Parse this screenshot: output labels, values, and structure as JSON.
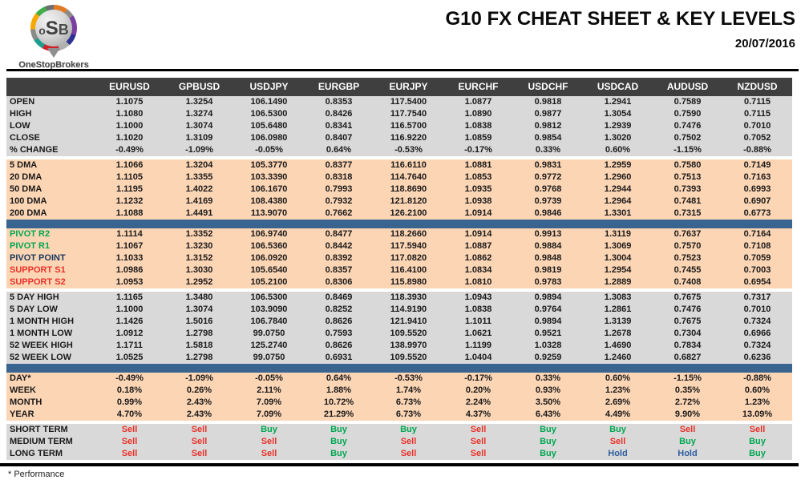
{
  "header": {
    "logo_text_o": "o",
    "logo_text_s": "S",
    "logo_text_b": "B",
    "logo_subtext": "OneStopBrokers",
    "title": "G10 FX CHEAT SHEET & KEY LEVELS",
    "date": "20/07/2016"
  },
  "colors": {
    "header_bar": "#3f3f3f",
    "gray_block": "#d9d9d9",
    "peach_block": "#fcd5b4",
    "blue_divider": "#38648f",
    "buy_green": "#00a651",
    "sell_red": "#e8312a",
    "hold_blue": "#2e5c9e",
    "pivot_navy": "#17375d"
  },
  "table": {
    "columns": [
      "EURUSD",
      "GPBUSD",
      "USDJPY",
      "EURGBP",
      "EURJPY",
      "EURCHF",
      "USDCHF",
      "USDCAD",
      "AUDUSD",
      "NZDUSD"
    ],
    "sections": [
      {
        "style": "gray",
        "after": "gap",
        "rows": [
          {
            "label": "OPEN",
            "values": [
              "1.1075",
              "1.3254",
              "106.1490",
              "0.8353",
              "117.5400",
              "1.0877",
              "0.9818",
              "1.2941",
              "0.7589",
              "0.7115"
            ]
          },
          {
            "label": "HIGH",
            "values": [
              "1.1080",
              "1.3274",
              "106.5300",
              "0.8426",
              "117.7540",
              "1.0890",
              "0.9877",
              "1.3054",
              "0.7590",
              "0.7115"
            ]
          },
          {
            "label": "LOW",
            "values": [
              "1.1000",
              "1.3074",
              "105.6480",
              "0.8341",
              "116.5700",
              "1.0838",
              "0.9812",
              "1.2939",
              "0.7476",
              "0.7010"
            ]
          },
          {
            "label": "CLOSE",
            "values": [
              "1.1020",
              "1.3109",
              "106.0980",
              "0.8407",
              "116.9220",
              "1.0859",
              "0.9854",
              "1.3020",
              "0.7502",
              "0.7052"
            ]
          },
          {
            "label": "% CHANGE",
            "values": [
              "-0.49%",
              "-1.09%",
              "-0.05%",
              "0.64%",
              "-0.53%",
              "-0.17%",
              "0.33%",
              "0.60%",
              "-1.15%",
              "-0.88%"
            ]
          }
        ]
      },
      {
        "style": "peach",
        "after": "bar",
        "rows": [
          {
            "label": "5 DMA",
            "values": [
              "1.1066",
              "1.3204",
              "105.3770",
              "0.8377",
              "116.6110",
              "1.0881",
              "0.9831",
              "1.2959",
              "0.7580",
              "0.7149"
            ]
          },
          {
            "label": "20 DMA",
            "values": [
              "1.1105",
              "1.3355",
              "103.3390",
              "0.8318",
              "114.7640",
              "1.0853",
              "0.9772",
              "1.2960",
              "0.7513",
              "0.7163"
            ]
          },
          {
            "label": "50 DMA",
            "values": [
              "1.1195",
              "1.4022",
              "106.1670",
              "0.7993",
              "118.8690",
              "1.0935",
              "0.9768",
              "1.2944",
              "0.7393",
              "0.6993"
            ]
          },
          {
            "label": "100 DMA",
            "values": [
              "1.1232",
              "1.4169",
              "108.4380",
              "0.7932",
              "121.8120",
              "1.0938",
              "0.9739",
              "1.2964",
              "0.7481",
              "0.6907"
            ]
          },
          {
            "label": "200 DMA",
            "values": [
              "1.1088",
              "1.4491",
              "113.9070",
              "0.7662",
              "126.2100",
              "1.0914",
              "0.9846",
              "1.3301",
              "0.7315",
              "0.6773"
            ]
          }
        ]
      },
      {
        "style": "peach",
        "after": "gap",
        "rows": [
          {
            "label": "PIVOT R2",
            "lc": "green",
            "values": [
              "1.1114",
              "1.3352",
              "106.9740",
              "0.8477",
              "118.2660",
              "1.0914",
              "0.9913",
              "1.3119",
              "0.7637",
              "0.7164"
            ]
          },
          {
            "label": "PIVOT R1",
            "lc": "green",
            "values": [
              "1.1067",
              "1.3230",
              "106.5360",
              "0.8442",
              "117.5940",
              "1.0887",
              "0.9884",
              "1.3069",
              "0.7570",
              "0.7108"
            ]
          },
          {
            "label": "PIVOT POINT",
            "lc": "navy",
            "values": [
              "1.1033",
              "1.3152",
              "106.0920",
              "0.8392",
              "117.0820",
              "1.0862",
              "0.9848",
              "1.3004",
              "0.7523",
              "0.7059"
            ]
          },
          {
            "label": "SUPPORT S1",
            "lc": "red",
            "values": [
              "1.0986",
              "1.3030",
              "105.6540",
              "0.8357",
              "116.4100",
              "1.0834",
              "0.9819",
              "1.2954",
              "0.7455",
              "0.7003"
            ]
          },
          {
            "label": "SUPPORT S2",
            "lc": "red",
            "values": [
              "1.0953",
              "1.2952",
              "105.2100",
              "0.8306",
              "115.8980",
              "1.0810",
              "0.9783",
              "1.2889",
              "0.7408",
              "0.6954"
            ]
          }
        ]
      },
      {
        "style": "gray",
        "after": "bar",
        "rows": [
          {
            "label": "5 DAY HIGH",
            "values": [
              "1.1165",
              "1.3480",
              "106.5300",
              "0.8469",
              "118.3930",
              "1.0943",
              "0.9894",
              "1.3083",
              "0.7675",
              "0.7317"
            ]
          },
          {
            "label": "5 DAY LOW",
            "values": [
              "1.1000",
              "1.3074",
              "103.9090",
              "0.8252",
              "114.9190",
              "1.0838",
              "0.9764",
              "1.2861",
              "0.7476",
              "0.7010"
            ]
          },
          {
            "label": "1 MONTH HIGH",
            "values": [
              "1.1426",
              "1.5016",
              "106.7840",
              "0.8626",
              "121.9410",
              "1.1011",
              "0.9894",
              "1.3139",
              "0.7675",
              "0.7324"
            ]
          },
          {
            "label": "1 MONTH LOW",
            "values": [
              "1.0912",
              "1.2798",
              "99.0750",
              "0.7593",
              "109.5520",
              "1.0621",
              "0.9521",
              "1.2678",
              "0.7304",
              "0.6966"
            ]
          },
          {
            "label": "52 WEEK HIGH",
            "values": [
              "1.1711",
              "1.5818",
              "125.2740",
              "0.8626",
              "138.9970",
              "1.1199",
              "1.0328",
              "1.4690",
              "0.7834",
              "0.7324"
            ]
          },
          {
            "label": "52 WEEK LOW",
            "values": [
              "1.0525",
              "1.2798",
              "99.0750",
              "0.6931",
              "109.5520",
              "1.0404",
              "0.9259",
              "1.2460",
              "0.6827",
              "0.6236"
            ]
          }
        ]
      },
      {
        "style": "peach",
        "after": "gap",
        "rows": [
          {
            "label": "DAY*",
            "values": [
              "-0.49%",
              "-1.09%",
              "-0.05%",
              "0.64%",
              "-0.53%",
              "-0.17%",
              "0.33%",
              "0.60%",
              "-1.15%",
              "-0.88%"
            ]
          },
          {
            "label": "WEEK",
            "values": [
              "0.18%",
              "0.26%",
              "2.11%",
              "1.88%",
              "1.74%",
              "0.20%",
              "0.93%",
              "1.23%",
              "0.35%",
              "0.60%"
            ]
          },
          {
            "label": "MONTH",
            "values": [
              "0.99%",
              "2.43%",
              "7.09%",
              "10.72%",
              "6.73%",
              "2.24%",
              "3.50%",
              "2.69%",
              "2.72%",
              "1.23%"
            ]
          },
          {
            "label": "YEAR",
            "values": [
              "4.70%",
              "2.43%",
              "7.09%",
              "21.29%",
              "6.73%",
              "4.37%",
              "6.43%",
              "4.49%",
              "9.90%",
              "13.09%"
            ]
          }
        ]
      },
      {
        "style": "gray",
        "after": "none",
        "rows": [
          {
            "label": "SHORT TERM",
            "values": [
              "Sell",
              "Sell",
              "Buy",
              "Buy",
              "Buy",
              "Sell",
              "Buy",
              "Buy",
              "Sell",
              "Sell"
            ]
          },
          {
            "label": "MEDIUM TERM",
            "values": [
              "Sell",
              "Sell",
              "Sell",
              "Buy",
              "Sell",
              "Sell",
              "Buy",
              "Sell",
              "Buy",
              "Buy"
            ]
          },
          {
            "label": "LONG TERM",
            "values": [
              "Sell",
              "Sell",
              "Sell",
              "Buy",
              "Sell",
              "Sell",
              "Buy",
              "Hold",
              "Hold",
              "Buy"
            ]
          }
        ]
      }
    ]
  },
  "footer": {
    "note": "* Performance"
  }
}
